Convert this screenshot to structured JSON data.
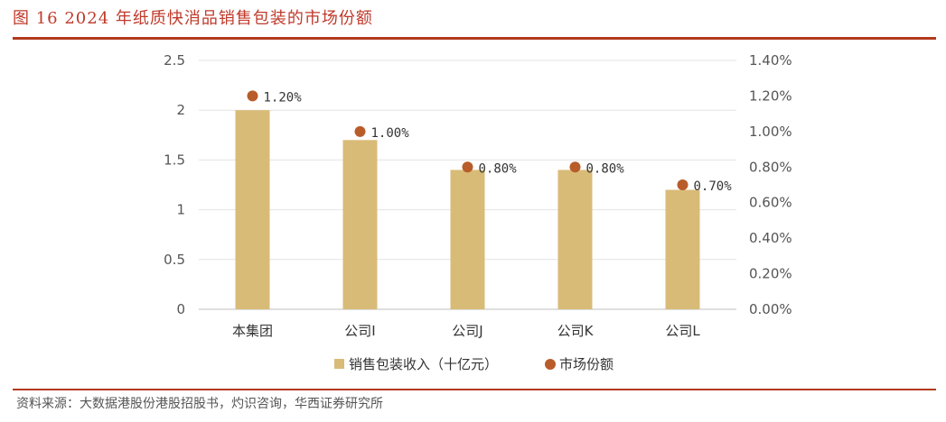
{
  "figure": {
    "title": "图 16    2024 年纸质快消品销售包装的市场份额",
    "source": "资料来源：大数据港股份港股招股书，灼识咨询，华西证券研究所"
  },
  "chart_data": {
    "type": "bar",
    "categories": [
      "本集团",
      "公司I",
      "公司J",
      "公司K",
      "公司L"
    ],
    "series": [
      {
        "name": "销售包装收入（十亿元）",
        "type": "bar",
        "axis": "left",
        "values": [
          2.0,
          1.7,
          1.4,
          1.4,
          1.2
        ],
        "color": "#d9bb78"
      },
      {
        "name": "市场份额",
        "type": "scatter",
        "axis": "right",
        "values": [
          1.2,
          1.0,
          0.8,
          0.8,
          0.7
        ],
        "labels": [
          "1.20%",
          "1.00%",
          "0.80%",
          "0.80%",
          "0.70%"
        ],
        "color": "#b85c2a"
      }
    ],
    "ylim": [
      0,
      2.5
    ],
    "yticks": [
      "0",
      "0.5",
      "1",
      "1.5",
      "2",
      "2.5"
    ],
    "y2lim": [
      0,
      1.4
    ],
    "y2ticks": [
      "0.00%",
      "0.20%",
      "0.40%",
      "0.60%",
      "0.80%",
      "1.00%",
      "1.20%",
      "1.40%"
    ],
    "grid": true,
    "legend": "bottom"
  }
}
